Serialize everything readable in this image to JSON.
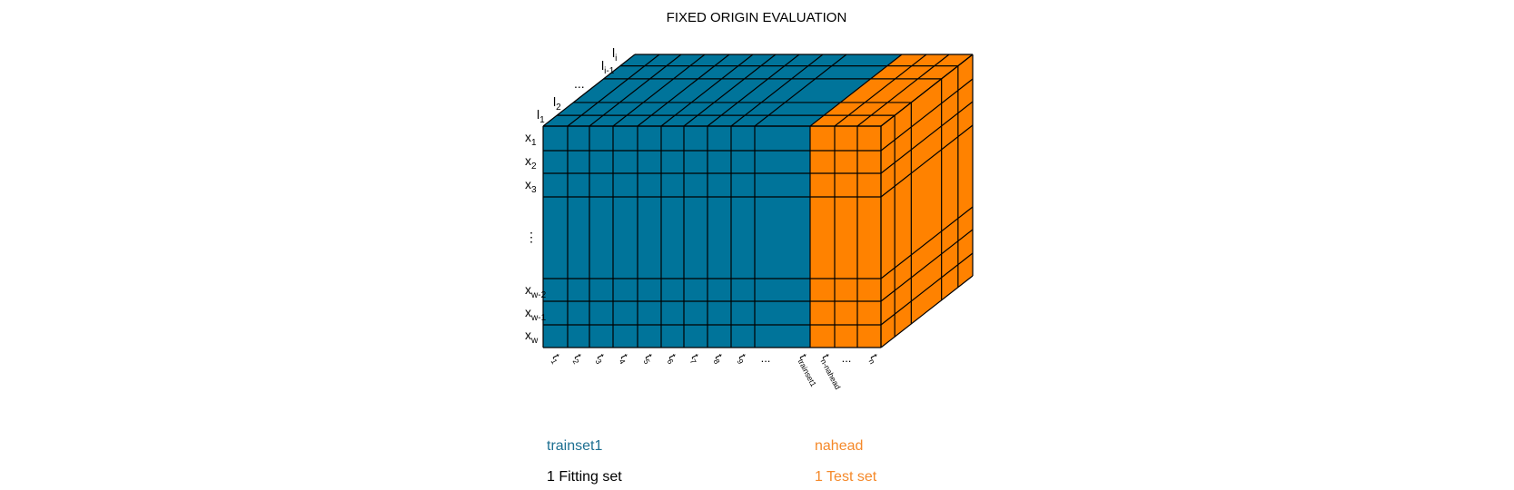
{
  "title": "FIXED ORIGIN EVALUATION",
  "colors": {
    "fitting": "#00749a",
    "test": "#ff8200",
    "grid": "#000000"
  },
  "row_labels": [
    {
      "base": "x",
      "sub": "1"
    },
    {
      "base": "x",
      "sub": "2"
    },
    {
      "base": "x",
      "sub": "3"
    },
    {
      "base": "⋮",
      "sub": ""
    },
    {
      "base": "x",
      "sub": "w-2"
    },
    {
      "base": "x",
      "sub": "w-1"
    },
    {
      "base": "x",
      "sub": "w"
    }
  ],
  "depth_labels": [
    {
      "base": "l",
      "sub": "1"
    },
    {
      "base": "l",
      "sub": "2"
    },
    {
      "base": "...",
      "sub": ""
    },
    {
      "base": "l",
      "sub": "i-1"
    },
    {
      "base": "l",
      "sub": "i"
    }
  ],
  "time_labels": [
    {
      "base": "t",
      "sub": "1"
    },
    {
      "base": "t",
      "sub": "2"
    },
    {
      "base": "t",
      "sub": "3"
    },
    {
      "base": "t",
      "sub": "4"
    },
    {
      "base": "t",
      "sub": "5"
    },
    {
      "base": "t",
      "sub": "6"
    },
    {
      "base": "t",
      "sub": "7"
    },
    {
      "base": "t",
      "sub": "8"
    },
    {
      "base": "t",
      "sub": "9"
    },
    {
      "base": "...",
      "sub": ""
    },
    {
      "base": "t",
      "sub": "trainset1"
    },
    {
      "base": "t",
      "sub": "n-nahead"
    },
    {
      "base": "...",
      "sub": ""
    },
    {
      "base": "t",
      "sub": "n"
    }
  ],
  "legend": {
    "fitting_name": "trainset1",
    "fitting_label": "1 Fitting set",
    "test_name": "nahead",
    "test_label": "1 Test set"
  }
}
